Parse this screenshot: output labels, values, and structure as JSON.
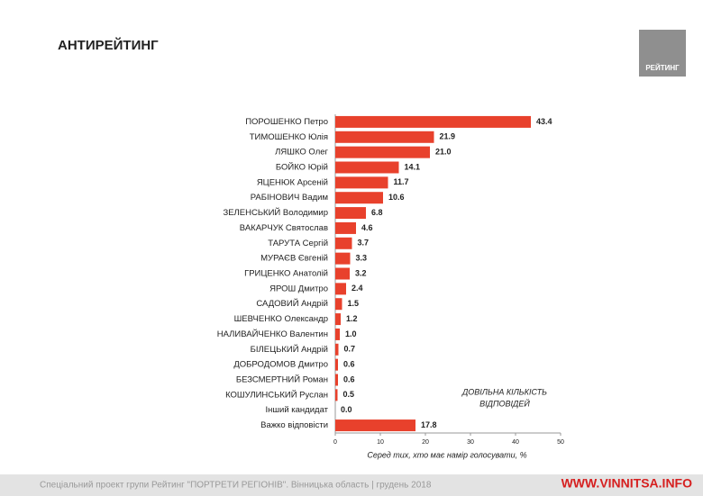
{
  "chart_data": {
    "type": "bar",
    "orientation": "horizontal",
    "title": "АНТИРЕЙТИНГ",
    "logo": "РЕЙТИНГ",
    "categories": [
      "ПОРОШЕНКО Петро",
      "ТИМОШЕНКО Юлія",
      "ЛЯШКО Олег",
      "БОЙКО Юрій",
      "ЯЦЕНЮК Арсеній",
      "РАБІНОВИЧ Вадим",
      "ЗЕЛЕНСЬКИЙ Володимир",
      "ВАКАРЧУК Святослав",
      "ТАРУТА Сергій",
      "МУРАЄВ Євгеній",
      "ГРИЦЕНКО Анатолій",
      "ЯРОШ Дмитро",
      "САДОВИЙ Андрій",
      "ШЕВЧЕНКО Олександр",
      "НАЛИВАЙЧЕНКО Валентин",
      "БІЛЕЦЬКИЙ Андрій",
      "ДОБРОДОМОВ Дмитро",
      "БЕЗСМЕРТНИЙ Роман",
      "КОШУЛИНСЬКИЙ Руслан",
      "Інший кандидат",
      "Важко відповісти"
    ],
    "values": [
      43.4,
      21.9,
      21.0,
      14.1,
      11.7,
      10.6,
      6.8,
      4.6,
      3.7,
      3.3,
      3.2,
      2.4,
      1.5,
      1.2,
      1.0,
      0.7,
      0.6,
      0.6,
      0.5,
      0.0,
      17.8
    ],
    "value_labels": [
      "43.4",
      "21.9",
      "21.0",
      "14.1",
      "11.7",
      "10.6",
      "6.8",
      "4.6",
      "3.7",
      "3.3",
      "3.2",
      "2.4",
      "1.5",
      "1.2",
      "1.0",
      "0.7",
      "0.6",
      "0.6",
      "0.5",
      "0.0",
      "17.8"
    ],
    "color": "#e8412c",
    "xlim": [
      0,
      50
    ],
    "xticks": [
      0,
      10,
      20,
      30,
      40,
      50
    ],
    "xlabel": "Серед тих, хто має намір голосувати, %",
    "annotation": [
      "ДОВІЛЬНА КІЛЬКІСТЬ",
      "ВІДПОВІДЕЙ"
    ],
    "footer": "Спеціальний проект групи Рейтинг \"ПОРТРЕТИ РЕГІОНІВ\". Вінницька область | грудень 2018",
    "watermark": "WWW.VINNITSA.INFO"
  }
}
